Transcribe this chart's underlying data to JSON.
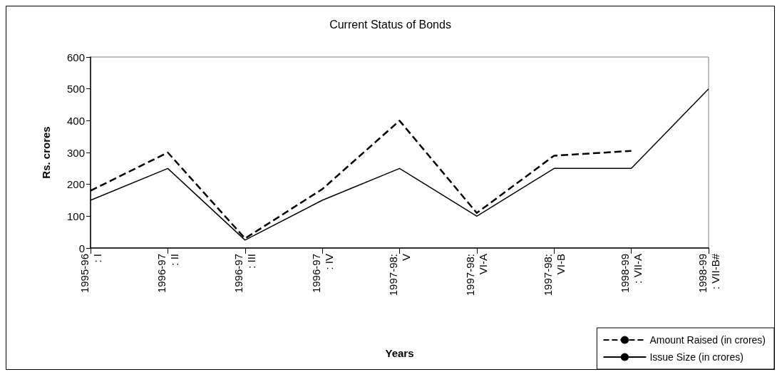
{
  "chart_data": {
    "type": "line",
    "title": "Current Status of Bonds",
    "xlabel": "Years",
    "ylabel": "Rs. crores",
    "categories": [
      "1995-96 : I",
      "1996-97 : II",
      "1996-97 : III",
      "1996-97 : IV",
      "1997-98: V",
      "1997-98: VI-A",
      "1997-98: VI-B",
      "1998-99 : VII-A",
      "1998-99 : VII-B#"
    ],
    "series": [
      {
        "name": "Amount Raised (in crores)",
        "color": "#000000",
        "line_style": "dashed",
        "values": [
          180,
          300,
          30,
          185,
          400,
          110,
          290,
          305,
          null
        ]
      },
      {
        "name": "Issue Size (in crores)",
        "color": "#000000",
        "line_style": "solid",
        "values": [
          150,
          250,
          25,
          150,
          250,
          100,
          250,
          250,
          500
        ]
      }
    ],
    "ylim": [
      0,
      600
    ],
    "yticks": [
      0,
      100,
      200,
      300,
      400,
      500,
      600
    ],
    "grid": false,
    "legend": "bottom right",
    "marker": "none"
  }
}
